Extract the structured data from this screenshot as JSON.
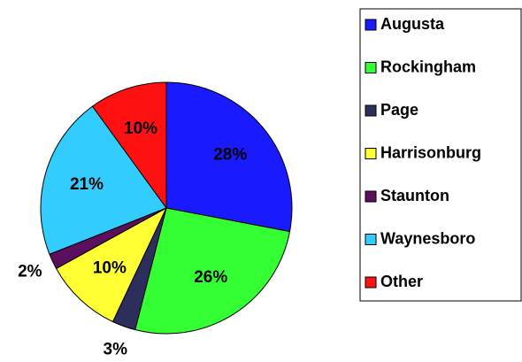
{
  "chart_data": {
    "type": "pie",
    "categories": [
      "Augusta",
      "Rockingham",
      "Page",
      "Harrisonburg",
      "Staunton",
      "Waynesboro",
      "Other"
    ],
    "values": [
      28,
      26,
      3,
      10,
      2,
      21,
      10
    ],
    "value_labels": [
      "28%",
      "26%",
      "3%",
      "10%",
      "2%",
      "21%",
      "10%"
    ],
    "colors": [
      "#1a1aff",
      "#33ff33",
      "#2e2e5c",
      "#ffff33",
      "#5c0f5c",
      "#33ccff",
      "#ff1111"
    ],
    "legend": "right"
  }
}
